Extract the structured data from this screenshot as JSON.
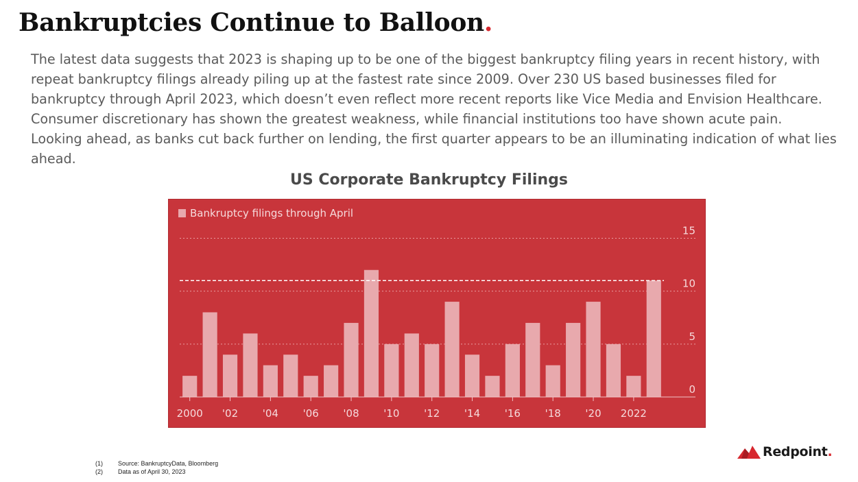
{
  "header": {
    "title": "Bankruptcies Continue to Balloon",
    "title_dot": "."
  },
  "body": {
    "paragraph": "The latest data suggests that 2023 is shaping up to be one of the biggest bankruptcy filing years in recent history, with repeat bankruptcy filings already piling up at the fastest rate since 2009. Over 230 US based businesses filed for bankruptcy through April 2023, which doesn’t even reflect more recent reports like Vice Media and Envision Healthcare. Consumer discretionary has shown the greatest weakness, while financial institutions too have shown acute pain. Looking ahead, as banks cut back further on lending, the first quarter appears to be an illuminating indication of what lies ahead."
  },
  "chart_data": {
    "type": "bar",
    "title": "US Corporate Bankruptcy Filings",
    "legend": "Bankruptcy filings through April",
    "legend_position": "top-left",
    "categories": [
      2000,
      2001,
      2002,
      2003,
      2004,
      2005,
      2006,
      2007,
      2008,
      2009,
      2010,
      2011,
      2012,
      2013,
      2014,
      2015,
      2016,
      2017,
      2018,
      2019,
      2020,
      2021,
      2022,
      2023
    ],
    "values": [
      2,
      8,
      4,
      6,
      3,
      4,
      2,
      3,
      7,
      12,
      5,
      6,
      5,
      9,
      4,
      2,
      5,
      7,
      3,
      7,
      9,
      5,
      2,
      11
    ],
    "reference_line": 11,
    "ylim": [
      0,
      16
    ],
    "yticks": [
      0,
      5,
      10,
      15
    ],
    "xtick_labels": [
      "2000",
      "'02",
      "'04",
      "'06",
      "'08",
      "'10",
      "'12",
      "'14",
      "'16",
      "'18",
      "'20",
      "2022"
    ],
    "grid": true,
    "colors": {
      "background": "#c8353b",
      "bar": "#e8a9ad",
      "text": "#f6dadc"
    }
  },
  "footnotes": [
    {
      "num": "(1)",
      "text": "Source: BankruptcyData, Bloomberg"
    },
    {
      "num": "(2)",
      "text": "Data as of April 30, 2023"
    }
  ],
  "logo": {
    "text": "Redpoint",
    "dot": "."
  }
}
